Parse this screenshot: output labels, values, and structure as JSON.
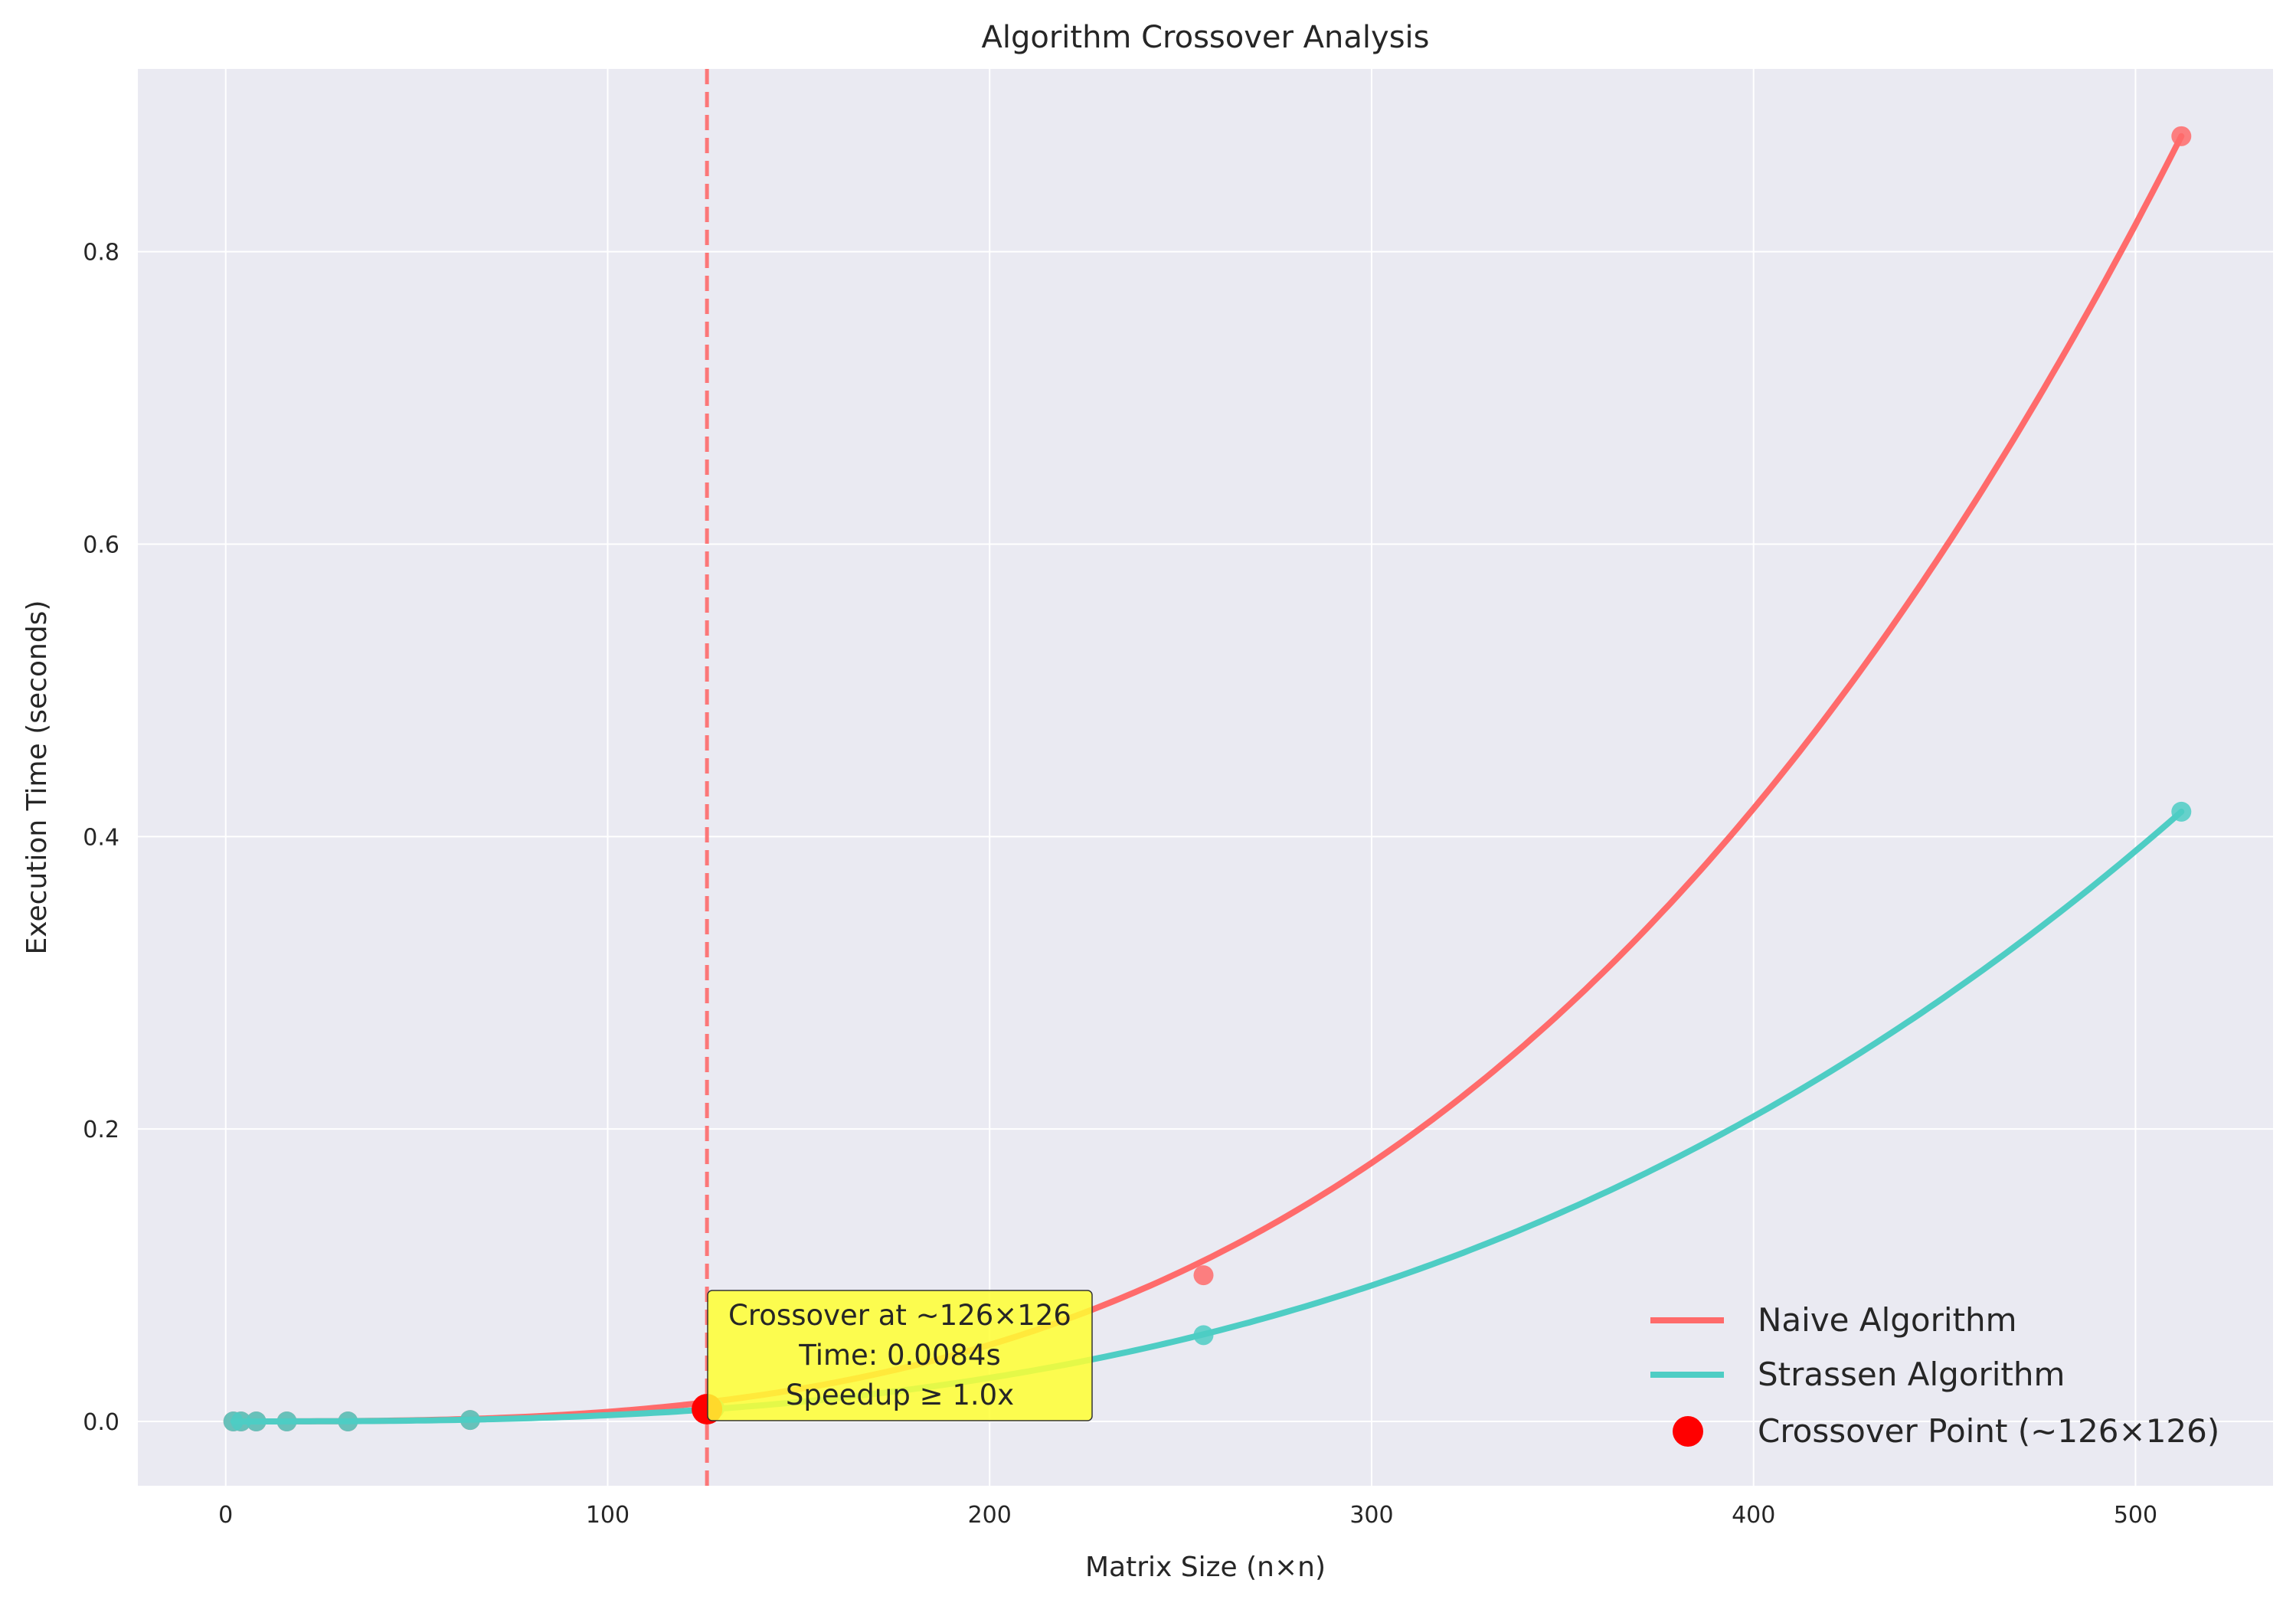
{
  "chart_data": {
    "type": "line",
    "title": "Algorithm Crossover Analysis",
    "xlabel": "Matrix Size (n×n)",
    "ylabel": "Execution Time (seconds)",
    "xlim": [
      -23,
      536
    ],
    "ylim": [
      -0.044,
      0.925
    ],
    "x_ticks": [
      0,
      100,
      200,
      300,
      400,
      500
    ],
    "y_ticks": [
      0.0,
      0.2,
      0.4,
      0.6,
      0.8
    ],
    "x_tick_labels": [
      "0",
      "100",
      "200",
      "300",
      "400",
      "500"
    ],
    "y_tick_labels": [
      "0.0",
      "0.2",
      "0.4",
      "0.6",
      "0.8"
    ],
    "grid": true,
    "legend_position": "bottom-right",
    "series": [
      {
        "name": "Naive Algorithm",
        "color": "#FF6B6B",
        "curve": "cubic",
        "measured": {
          "x": [
            2,
            4,
            8,
            16,
            32,
            64,
            128,
            256,
            512
          ],
          "y": [
            0.0,
            0.0,
            0.0,
            0.0,
            0.0,
            0.001,
            0.009,
            0.1,
            0.879
          ]
        }
      },
      {
        "name": "Strassen Algorithm",
        "color": "#4ECDC4",
        "curve": "power",
        "measured": {
          "x": [
            2,
            4,
            8,
            16,
            32,
            64,
            128,
            256,
            512
          ],
          "y": [
            0.0,
            0.0,
            0.0,
            0.0,
            0.0,
            0.001,
            0.009,
            0.059,
            0.417
          ]
        }
      }
    ],
    "crossover": {
      "legend_label": "Crossover Point (~126×126)",
      "x": 126,
      "y": 0.0084,
      "color": "#FF0000",
      "vline_color": "#FF6B6B"
    },
    "annotation": {
      "lines": [
        "Crossover at ~126×126",
        "Time: 0.0084s",
        "Speedup ≥ 1.0x"
      ],
      "box_color": "#FFFF33"
    },
    "colors": {
      "plot_background": "#EAEAF2",
      "grid": "#FFFFFF"
    }
  }
}
